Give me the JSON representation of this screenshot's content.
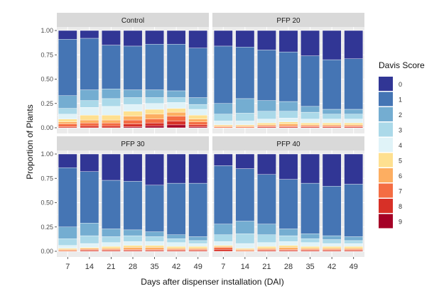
{
  "chart_data": {
    "type": "bar",
    "stacked": true,
    "facet_layout": "2x2",
    "xlabel": "Days after dispenser installation (DAI)",
    "ylabel": "Proportion of Plants",
    "ylim": [
      0,
      1
    ],
    "y_ticks": [
      "0.00",
      "0.25",
      "0.50",
      "0.75",
      "1.00"
    ],
    "y_tick_values": [
      0,
      0.25,
      0.5,
      0.75,
      1.0
    ],
    "categories": [
      "7",
      "14",
      "21",
      "28",
      "35",
      "42",
      "49"
    ],
    "legend": {
      "title": "Davis Score",
      "placement": "right",
      "entries": [
        "0",
        "1",
        "2",
        "3",
        "4",
        "5",
        "6",
        "7",
        "8",
        "9"
      ]
    },
    "colors": {
      "0": "#313695",
      "1": "#4575b4",
      "2": "#74add1",
      "3": "#abd9e9",
      "4": "#e0f3f8",
      "5": "#fee090",
      "6": "#fdae61",
      "7": "#f46d43",
      "8": "#d73027",
      "9": "#a50026"
    },
    "panel_background": "#ebebeb",
    "strip_background": "#d9d9d9",
    "grid_color": "#ffffff",
    "panels": [
      {
        "title": "Control",
        "stack_order_bottom_to_top": [
          "9",
          "8",
          "7",
          "6",
          "5",
          "4",
          "3",
          "2",
          "1",
          "0"
        ],
        "cumulative_tops_note": "values below are proportions per score",
        "bars": [
          {
            "day": "7",
            "scores": {
              "9": 0.0,
              "8": 0.01,
              "7": 0.03,
              "6": 0.02,
              "5": 0.03,
              "4": 0.05,
              "3": 0.06,
              "2": 0.13,
              "1": 0.58,
              "0": 0.09
            }
          },
          {
            "day": "14",
            "scores": {
              "9": 0.0,
              "8": 0.02,
              "7": 0.03,
              "6": 0.03,
              "5": 0.05,
              "4": 0.08,
              "3": 0.07,
              "2": 0.11,
              "1": 0.53,
              "0": 0.08
            }
          },
          {
            "day": "21",
            "scores": {
              "9": 0.0,
              "8": 0.02,
              "7": 0.03,
              "6": 0.03,
              "5": 0.05,
              "4": 0.09,
              "3": 0.08,
              "2": 0.1,
              "1": 0.45,
              "0": 0.15
            }
          },
          {
            "day": "28",
            "scores": {
              "9": 0.01,
              "8": 0.03,
              "7": 0.04,
              "6": 0.04,
              "5": 0.05,
              "4": 0.07,
              "3": 0.07,
              "2": 0.08,
              "1": 0.45,
              "0": 0.16
            }
          },
          {
            "day": "35",
            "scores": {
              "9": 0.02,
              "8": 0.03,
              "7": 0.04,
              "6": 0.05,
              "5": 0.05,
              "4": 0.06,
              "3": 0.06,
              "2": 0.08,
              "1": 0.47,
              "0": 0.14
            }
          },
          {
            "day": "42",
            "scores": {
              "9": 0.03,
              "8": 0.04,
              "7": 0.05,
              "6": 0.04,
              "5": 0.04,
              "4": 0.06,
              "3": 0.05,
              "2": 0.07,
              "1": 0.48,
              "0": 0.14
            }
          },
          {
            "day": "49",
            "scores": {
              "9": 0.01,
              "8": 0.02,
              "7": 0.03,
              "6": 0.03,
              "5": 0.04,
              "4": 0.06,
              "3": 0.05,
              "2": 0.07,
              "1": 0.51,
              "0": 0.18
            }
          }
        ]
      },
      {
        "title": "PFP 20",
        "bars": [
          {
            "day": "7",
            "scores": {
              "9": 0.0,
              "8": 0.0,
              "7": 0.01,
              "6": 0.01,
              "5": 0.01,
              "4": 0.04,
              "3": 0.07,
              "2": 0.11,
              "1": 0.59,
              "0": 0.16
            }
          },
          {
            "day": "14",
            "scores": {
              "9": 0.0,
              "8": 0.0,
              "7": 0.01,
              "6": 0.01,
              "5": 0.01,
              "4": 0.04,
              "3": 0.08,
              "2": 0.15,
              "1": 0.53,
              "0": 0.17
            }
          },
          {
            "day": "21",
            "scores": {
              "9": 0.0,
              "8": 0.01,
              "7": 0.01,
              "6": 0.01,
              "5": 0.02,
              "4": 0.04,
              "3": 0.08,
              "2": 0.11,
              "1": 0.52,
              "0": 0.2
            }
          },
          {
            "day": "28",
            "scores": {
              "9": 0.0,
              "8": 0.01,
              "7": 0.01,
              "6": 0.02,
              "5": 0.02,
              "4": 0.04,
              "3": 0.07,
              "2": 0.1,
              "1": 0.51,
              "0": 0.22
            }
          },
          {
            "day": "35",
            "scores": {
              "9": 0.0,
              "8": 0.01,
              "7": 0.01,
              "6": 0.01,
              "5": 0.02,
              "4": 0.04,
              "3": 0.07,
              "2": 0.06,
              "1": 0.52,
              "0": 0.26
            }
          },
          {
            "day": "42",
            "scores": {
              "9": 0.0,
              "8": 0.01,
              "7": 0.01,
              "6": 0.01,
              "5": 0.02,
              "4": 0.04,
              "3": 0.05,
              "2": 0.05,
              "1": 0.51,
              "0": 0.3
            }
          },
          {
            "day": "49",
            "scores": {
              "9": 0.0,
              "8": 0.01,
              "7": 0.01,
              "6": 0.01,
              "5": 0.02,
              "4": 0.04,
              "3": 0.05,
              "2": 0.05,
              "1": 0.52,
              "0": 0.29
            }
          }
        ]
      },
      {
        "title": "PFP 30",
        "bars": [
          {
            "day": "7",
            "scores": {
              "9": 0.0,
              "8": 0.0,
              "7": 0.01,
              "6": 0.01,
              "5": 0.01,
              "4": 0.03,
              "3": 0.07,
              "2": 0.12,
              "1": 0.61,
              "0": 0.14
            }
          },
          {
            "day": "14",
            "scores": {
              "9": 0.0,
              "8": 0.01,
              "7": 0.01,
              "6": 0.01,
              "5": 0.01,
              "4": 0.04,
              "3": 0.08,
              "2": 0.13,
              "1": 0.53,
              "0": 0.18
            }
          },
          {
            "day": "21",
            "scores": {
              "9": 0.0,
              "8": 0.01,
              "7": 0.01,
              "6": 0.01,
              "5": 0.02,
              "4": 0.04,
              "3": 0.06,
              "2": 0.08,
              "1": 0.5,
              "0": 0.27
            }
          },
          {
            "day": "28",
            "scores": {
              "9": 0.0,
              "8": 0.01,
              "7": 0.01,
              "6": 0.02,
              "5": 0.02,
              "4": 0.04,
              "3": 0.06,
              "2": 0.06,
              "1": 0.5,
              "0": 0.28
            }
          },
          {
            "day": "35",
            "scores": {
              "9": 0.0,
              "8": 0.01,
              "7": 0.01,
              "6": 0.02,
              "5": 0.02,
              "4": 0.04,
              "3": 0.05,
              "2": 0.05,
              "1": 0.48,
              "0": 0.32
            }
          },
          {
            "day": "42",
            "scores": {
              "9": 0.0,
              "8": 0.01,
              "7": 0.01,
              "6": 0.01,
              "5": 0.02,
              "4": 0.04,
              "3": 0.04,
              "2": 0.04,
              "1": 0.53,
              "0": 0.3
            }
          },
          {
            "day": "49",
            "scores": {
              "9": 0.0,
              "8": 0.01,
              "7": 0.01,
              "6": 0.01,
              "5": 0.02,
              "4": 0.03,
              "3": 0.03,
              "2": 0.04,
              "1": 0.55,
              "0": 0.3
            }
          }
        ]
      },
      {
        "title": "PFP 40",
        "bars": [
          {
            "day": "7",
            "scores": {
              "9": 0.0,
              "8": 0.02,
              "7": 0.02,
              "6": 0.01,
              "5": 0.01,
              "4": 0.04,
              "3": 0.07,
              "2": 0.11,
              "1": 0.6,
              "0": 0.12
            }
          },
          {
            "day": "14",
            "scores": {
              "9": 0.0,
              "8": 0.0,
              "7": 0.01,
              "6": 0.01,
              "5": 0.01,
              "4": 0.05,
              "3": 0.1,
              "2": 0.13,
              "1": 0.54,
              "0": 0.15
            }
          },
          {
            "day": "21",
            "scores": {
              "9": 0.0,
              "8": 0.01,
              "7": 0.01,
              "6": 0.01,
              "5": 0.02,
              "4": 0.04,
              "3": 0.08,
              "2": 0.11,
              "1": 0.51,
              "0": 0.21
            }
          },
          {
            "day": "28",
            "scores": {
              "9": 0.0,
              "8": 0.01,
              "7": 0.01,
              "6": 0.02,
              "5": 0.02,
              "4": 0.04,
              "3": 0.06,
              "2": 0.07,
              "1": 0.51,
              "0": 0.26
            }
          },
          {
            "day": "35",
            "scores": {
              "9": 0.0,
              "8": 0.01,
              "7": 0.01,
              "6": 0.01,
              "5": 0.02,
              "4": 0.04,
              "3": 0.04,
              "2": 0.05,
              "1": 0.52,
              "0": 0.3
            }
          },
          {
            "day": "42",
            "scores": {
              "9": 0.0,
              "8": 0.01,
              "7": 0.01,
              "6": 0.01,
              "5": 0.02,
              "4": 0.03,
              "3": 0.04,
              "2": 0.04,
              "1": 0.51,
              "0": 0.33
            }
          },
          {
            "day": "49",
            "scores": {
              "9": 0.0,
              "8": 0.01,
              "7": 0.01,
              "6": 0.01,
              "5": 0.02,
              "4": 0.03,
              "3": 0.03,
              "2": 0.04,
              "1": 0.54,
              "0": 0.31
            }
          }
        ]
      }
    ]
  }
}
